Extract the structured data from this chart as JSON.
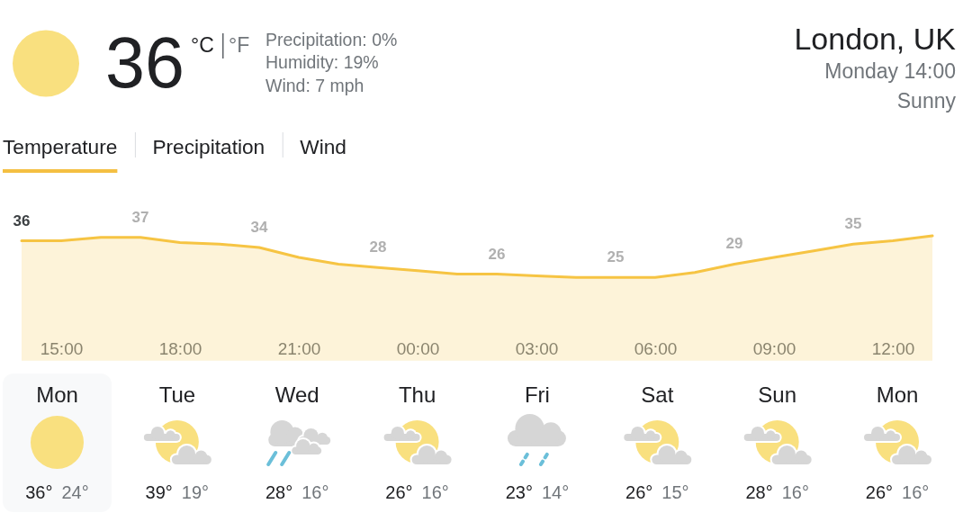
{
  "chart_data": [
    {
      "type": "other",
      "title": "London, UK",
      "subtitle": "Monday 14:00",
      "annotations": [
        "36",
        "°C",
        "°F",
        "Precipitation: 0%",
        "Humidity: 19%",
        "Wind: 7 mph",
        "Sunny",
        "Temperature",
        "Precipitation",
        "Wind"
      ]
    },
    {
      "type": "area",
      "categories": [
        null,
        "15:00",
        null,
        null,
        "18:00",
        null,
        null,
        "21:00",
        null,
        null,
        "00:00",
        null,
        null,
        "03:00",
        null,
        null,
        "06:00",
        null,
        null,
        "09:00",
        null,
        null,
        "12:00",
        null
      ],
      "values": [
        36,
        36,
        37,
        37,
        35.5,
        35,
        34,
        31,
        29,
        28,
        27,
        26,
        26,
        25.5,
        25,
        25,
        25,
        26.5,
        29,
        31,
        33,
        35,
        36,
        37.5
      ],
      "value_labels": [
        "36",
        null,
        null,
        "37",
        null,
        null,
        "34",
        null,
        null,
        "28",
        null,
        null,
        "26",
        null,
        null,
        "25",
        null,
        null,
        "29",
        null,
        null,
        "35",
        null,
        null
      ],
      "color": "#f6c443",
      "tick_labels": "x"
    },
    {
      "type": "other",
      "categories": [
        "Mon",
        "Tue",
        "Wed",
        "Thu",
        "Fri",
        "Sat",
        "Sun",
        "Mon"
      ],
      "annotations": [
        "36°",
        "24°",
        "39°",
        "19°",
        "28°",
        "16°",
        "26°",
        "16°",
        "23°",
        "14°",
        "26°",
        "15°",
        "28°",
        "16°",
        "26°",
        "16°"
      ]
    }
  ]
}
